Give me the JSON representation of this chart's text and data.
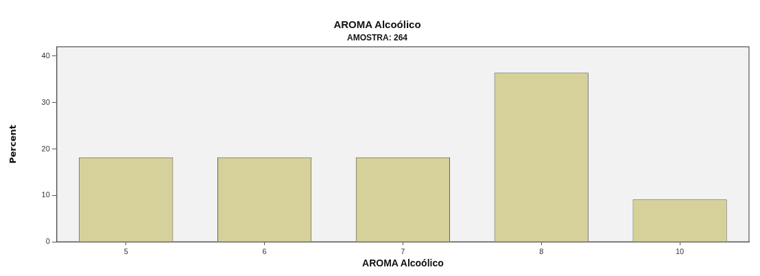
{
  "chart_data": {
    "type": "bar",
    "title": "AROMA Alcoólico",
    "subtitle": "AMOSTRA: 264",
    "xlabel": "AROMA Alcoólico",
    "ylabel": "Percent",
    "categories": [
      "5",
      "6",
      "7",
      "8",
      "10"
    ],
    "values": [
      18.2,
      18.2,
      18.2,
      36.4,
      9.1
    ],
    "color": "#d6d19a",
    "ylim": [
      0,
      42
    ],
    "yticks": [
      0,
      10,
      20,
      30,
      40
    ],
    "grid": false,
    "legend": false
  }
}
